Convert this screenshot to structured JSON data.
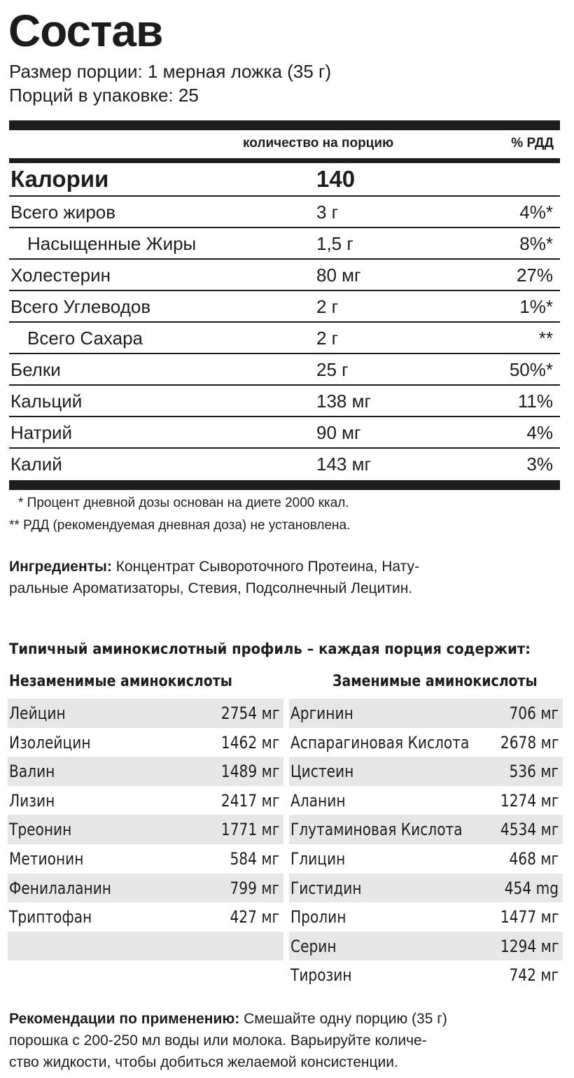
{
  "title": "Состав",
  "serving": {
    "size": "Размер порции: 1 мерная ложка (35 г)",
    "per_package": "Порций в упаковке: 25"
  },
  "nutrition": {
    "header_amount": "количество на порцию",
    "header_dv": "% РДД",
    "calories": {
      "name": "Калории",
      "amount": "140"
    },
    "rows": [
      {
        "name": "Всего жиров",
        "amount": "3 г",
        "dv": "4%*",
        "sub": false
      },
      {
        "name": "Насыщенные Жиры",
        "amount": "1,5 г",
        "dv": "8%*",
        "sub": true
      },
      {
        "name": "Холестерин",
        "amount": "80 мг",
        "dv": "27%",
        "sub": false
      },
      {
        "name": "Всего Углеводов",
        "amount": "2 г",
        "dv": "1%*",
        "sub": false
      },
      {
        "name": "Всего Сахара",
        "amount": "2 г",
        "dv": "**",
        "sub": true
      },
      {
        "name": "Белки",
        "amount": "25 г",
        "dv": "50%*",
        "sub": false
      },
      {
        "name": "Кальций",
        "amount": "138 мг",
        "dv": "11%",
        "sub": false
      },
      {
        "name": "Натрий",
        "amount": "90 мг",
        "dv": "4%",
        "sub": false
      },
      {
        "name": "Калий",
        "amount": "143 мг",
        "dv": "3%",
        "sub": false
      }
    ],
    "footnote1": "* Процент дневной дозы основан на диете 2000 ккал.",
    "footnote2": "** РДД (рекомендуемая дневная доза) не установлена."
  },
  "ingredients": {
    "label": "Ингредиенты:",
    "line1": " Концентрат Сывороточного Протеина, Нату-",
    "line2": "ральные Ароматизаторы, Стевия, Подсолнечный Лецитин."
  },
  "amino": {
    "title": "Типичный аминокислотный профиль – каждая порция содержит:",
    "essential_header": "Незаменимые аминокислоты",
    "nonessential_header": "Заменимые аминокислоты",
    "essential": [
      {
        "name": "Лейцин",
        "value": "2754 мг"
      },
      {
        "name": "Изолейцин",
        "value": "1462 мг"
      },
      {
        "name": "Валин",
        "value": "1489 мг"
      },
      {
        "name": "Лизин",
        "value": "2417 мг"
      },
      {
        "name": "Треонин",
        "value": "1771 мг"
      },
      {
        "name": "Метионин",
        "value": "584 мг"
      },
      {
        "name": "Фенилаланин",
        "value": "799 мг"
      },
      {
        "name": "Триптофан",
        "value": "427 мг"
      },
      {
        "name": "",
        "value": ""
      }
    ],
    "nonessential": [
      {
        "name": "Аргинин",
        "value": "706 мг"
      },
      {
        "name": "Аспарагиновая Кислота",
        "value": "2678 мг"
      },
      {
        "name": "Цистеин",
        "value": "536 мг"
      },
      {
        "name": "Аланин",
        "value": "1274 мг"
      },
      {
        "name": "Глутаминовая Кислота",
        "value": "4534 мг"
      },
      {
        "name": "Глицин",
        "value": "468 мг"
      },
      {
        "name": "Гистидин",
        "value": "454 mg"
      },
      {
        "name": "Пролин",
        "value": "1477 мг"
      },
      {
        "name": "Серин",
        "value": "1294 мг"
      },
      {
        "name": "Тирозин",
        "value": "742 мг"
      }
    ]
  },
  "usage": {
    "label": "Рекомендации по применению:",
    "line1": " Смешайте одну порцию (35 г)",
    "line2": "порошка с 200-250 мл воды или молока. Варьируйте количе-",
    "line3": "ство жидкости, чтобы добиться желаемой консистенции."
  }
}
